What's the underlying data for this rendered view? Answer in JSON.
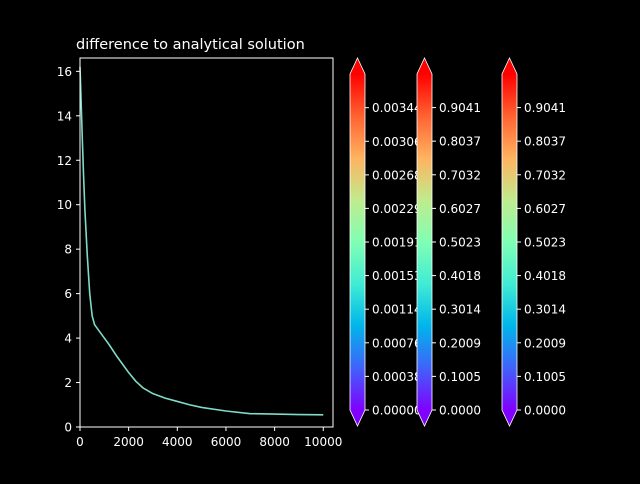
{
  "theme": {
    "background": "#000000",
    "foreground": "#ffffff",
    "line_color": "#7fdbc8"
  },
  "chart_data": [
    {
      "type": "line",
      "title": "difference to analytical solution",
      "xlabel": "",
      "ylabel": "",
      "xlim": [
        0,
        10400
      ],
      "ylim": [
        0,
        16.6
      ],
      "x_ticks": [
        0,
        2000,
        4000,
        6000,
        8000,
        10000
      ],
      "x_tick_labels": [
        "0",
        "2000",
        "4000",
        "6000",
        "8000",
        "10000"
      ],
      "y_ticks": [
        0,
        2,
        4,
        6,
        8,
        10,
        12,
        14,
        16
      ],
      "y_tick_labels": [
        "0",
        "2",
        "4",
        "6",
        "8",
        "10",
        "12",
        "14",
        "16"
      ],
      "grid": false,
      "series": [
        {
          "x": [
            0,
            50,
            100,
            150,
            200,
            300,
            400,
            500,
            600,
            700,
            800,
            1000,
            1200,
            1500,
            1800,
            2000,
            2300,
            2600,
            3000,
            3500,
            4000,
            4500,
            5000,
            6000,
            7000,
            8000,
            9000,
            10000
          ],
          "y": [
            16.2,
            14.5,
            12.8,
            11.2,
            9.8,
            7.7,
            6.0,
            5.0,
            4.6,
            4.45,
            4.3,
            4.0,
            3.7,
            3.2,
            2.75,
            2.45,
            2.05,
            1.75,
            1.5,
            1.3,
            1.15,
            1.0,
            0.88,
            0.72,
            0.6,
            0.58,
            0.56,
            0.55
          ]
        }
      ]
    },
    {
      "type": "colorbar",
      "colormap": "rainbow",
      "extend": "both",
      "range": [
        0,
        0.00383
      ],
      "ticks": [
        0,
        0.000383,
        0.000766,
        0.001149,
        0.001532,
        0.001915,
        0.002298,
        0.00268,
        0.003063,
        0.003446
      ],
      "tick_labels": [
        "0.000000",
        "0.000383",
        "0.000766",
        "0.001149",
        "0.001532",
        "0.001915",
        "0.002298",
        "0.002680",
        "0.003063",
        "0.003446"
      ]
    },
    {
      "type": "colorbar",
      "colormap": "rainbow",
      "extend": "both",
      "range": [
        0,
        1.0045
      ],
      "ticks": [
        0,
        0.1005,
        0.2009,
        0.3014,
        0.4018,
        0.5023,
        0.6027,
        0.7032,
        0.8037,
        0.9041
      ],
      "tick_labels": [
        "0.0000",
        "0.1005",
        "0.2009",
        "0.3014",
        "0.4018",
        "0.5023",
        "0.6027",
        "0.7032",
        "0.8037",
        "0.9041"
      ]
    },
    {
      "type": "colorbar",
      "colormap": "rainbow",
      "extend": "both",
      "range": [
        0,
        1.0045
      ],
      "ticks": [
        0,
        0.1005,
        0.2009,
        0.3014,
        0.4018,
        0.5023,
        0.6027,
        0.7032,
        0.8037,
        0.9041
      ],
      "tick_labels": [
        "0.0000",
        "0.1005",
        "0.2009",
        "0.3014",
        "0.4018",
        "0.5023",
        "0.6027",
        "0.7032",
        "0.8037",
        "0.9041"
      ]
    }
  ]
}
